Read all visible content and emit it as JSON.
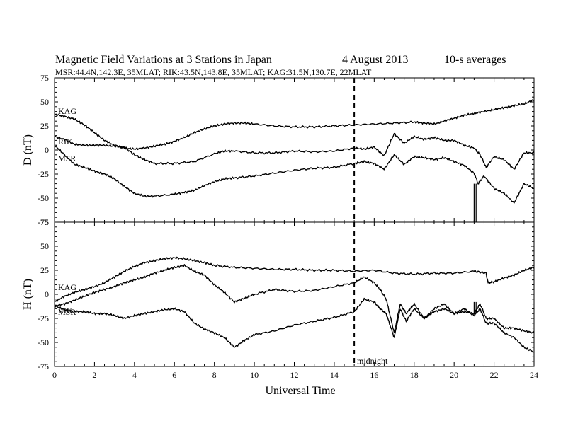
{
  "header": {
    "title": "Magnetic Field Variations at 3 Stations in Japan",
    "date": "4   August  2013",
    "averaging": "10-s averages",
    "stations": "MSR:44.4N,142.3E, 35MLAT;  RIK:43.5N,143.8E, 35MLAT;  KAG:31.5N,130.7E, 22MLAT"
  },
  "chart_data": [
    {
      "type": "line",
      "panel": "top",
      "ylabel": "D (nT)",
      "xlabel": "",
      "xlim": [
        0,
        24
      ],
      "ylim": [
        -75,
        75
      ],
      "yticks": [
        75,
        50,
        25,
        0,
        -25,
        -50,
        -75
      ],
      "xticks": [
        0,
        2,
        4,
        6,
        8,
        10,
        12,
        14,
        16,
        18,
        20,
        22,
        24
      ],
      "annotations": [
        "KAG",
        "RIK",
        "MSR"
      ],
      "marker_line": {
        "x": 15,
        "style": "dashed"
      },
      "series": [
        {
          "name": "KAG",
          "x": [
            0,
            0.5,
            1,
            1.5,
            2,
            2.5,
            3,
            3.5,
            4,
            4.5,
            5,
            5.5,
            6,
            6.5,
            7,
            7.5,
            8,
            8.5,
            9,
            9.5,
            10,
            11,
            12,
            13,
            14,
            15,
            16,
            17,
            18,
            18.5,
            19,
            19.5,
            20,
            20.5,
            21,
            21.5,
            22,
            22.5,
            23,
            23.5,
            24
          ],
          "y": [
            37,
            35,
            32,
            26,
            18,
            10,
            5,
            2,
            1,
            2,
            4,
            6,
            9,
            13,
            18,
            22,
            25,
            27,
            28,
            28,
            27,
            25,
            24,
            24,
            25,
            26,
            27,
            28,
            29,
            28,
            27,
            30,
            33,
            36,
            38,
            40,
            42,
            44,
            46,
            48,
            52
          ]
        },
        {
          "name": "RIK",
          "x": [
            0,
            0.5,
            1,
            1.5,
            2,
            2.5,
            3,
            3.5,
            4,
            4.5,
            5,
            6,
            7,
            8,
            8.5,
            9,
            10,
            11,
            12,
            13,
            14,
            15,
            15.5,
            16,
            16.5,
            17,
            17.5,
            18,
            18.5,
            19,
            19.5,
            20,
            20.5,
            21,
            21.3,
            21.6,
            22,
            22.5,
            23,
            23.5,
            24
          ],
          "y": [
            14,
            11,
            6,
            5,
            5,
            5,
            4,
            3,
            -5,
            -10,
            -14,
            -14,
            -12,
            -4,
            -1,
            -1,
            -3,
            -3,
            -1,
            -2,
            -1,
            2,
            1,
            3,
            -6,
            17,
            7,
            14,
            11,
            13,
            10,
            10,
            5,
            2,
            -5,
            -18,
            -7,
            -10,
            -20,
            -3,
            -3
          ]
        },
        {
          "name": "MSR",
          "x": [
            0,
            0.5,
            1,
            1.5,
            2,
            2.5,
            3,
            3.5,
            4,
            4.5,
            5,
            6,
            6.5,
            7,
            7.5,
            8,
            8.5,
            9,
            10,
            11,
            12,
            13,
            14,
            15,
            15.5,
            16,
            16.5,
            17,
            17.5,
            18,
            18.5,
            19,
            19.5,
            20,
            20.5,
            21,
            21.2,
            21.5,
            22,
            22.5,
            23,
            23.5,
            24
          ],
          "y": [
            5,
            -5,
            -15,
            -18,
            -22,
            -25,
            -30,
            -38,
            -45,
            -48,
            -48,
            -46,
            -44,
            -42,
            -37,
            -33,
            -30,
            -29,
            -27,
            -24,
            -21,
            -19,
            -18,
            -14,
            -12,
            -14,
            -20,
            -5,
            -15,
            -7,
            -8,
            -10,
            -8,
            -12,
            -16,
            -24,
            -35,
            -27,
            -40,
            -45,
            -55,
            -35,
            -40
          ]
        }
      ],
      "spikes": [
        {
          "station": "MSR",
          "x": 21.0,
          "y_min": -75,
          "y_max": -35
        },
        {
          "station": "MSR",
          "x": 21.1,
          "y_min": -75,
          "y_max": -35
        }
      ]
    },
    {
      "type": "line",
      "panel": "bottom",
      "ylabel": "H (nT)",
      "xlabel": "Universal Time",
      "xlim": [
        0,
        24
      ],
      "ylim": [
        -75,
        75
      ],
      "yticks": [
        75,
        50,
        25,
        0,
        -25,
        -50,
        -75
      ],
      "xticks": [
        0,
        2,
        4,
        6,
        8,
        10,
        12,
        14,
        16,
        18,
        20,
        22,
        24
      ],
      "annotations": [
        "KAG",
        "RIK",
        "MSR",
        "midnight"
      ],
      "marker_line": {
        "x": 15,
        "style": "dashed",
        "label": "midnight"
      },
      "series": [
        {
          "name": "KAG",
          "x": [
            0,
            0.5,
            1,
            1.5,
            2,
            2.5,
            3,
            3.5,
            4,
            4.5,
            5,
            5.5,
            6,
            6.5,
            7,
            7.5,
            8,
            9,
            10,
            11,
            12,
            13,
            14,
            15,
            16,
            17,
            18,
            19,
            20,
            21,
            21.6,
            21.7,
            22,
            22.5,
            23,
            23.5,
            24
          ],
          "y": [
            -8,
            -2,
            2,
            5,
            8,
            12,
            18,
            24,
            29,
            33,
            35,
            37,
            38,
            37,
            35,
            33,
            30,
            28,
            27,
            26,
            26,
            25,
            25,
            24,
            25,
            22,
            21,
            22,
            22,
            24,
            22,
            12,
            13,
            17,
            20,
            25,
            28
          ]
        },
        {
          "name": "RIK",
          "x": [
            0,
            0.5,
            1,
            1.5,
            2,
            2.5,
            3,
            3.5,
            4,
            4.5,
            5,
            5.5,
            6,
            6.5,
            7,
            7.5,
            8,
            8.5,
            9,
            9.5,
            10,
            11,
            12,
            13,
            14,
            15,
            15.5,
            16,
            16.3,
            16.6,
            17,
            17.3,
            17.6,
            18,
            18.5,
            19,
            19.5,
            20,
            20.5,
            21,
            21.3,
            21.6,
            22,
            22.5,
            23,
            23.5,
            24
          ],
          "y": [
            -12,
            -10,
            -6,
            -2,
            2,
            5,
            8,
            12,
            15,
            18,
            22,
            25,
            28,
            30,
            24,
            20,
            10,
            2,
            -8,
            -4,
            0,
            5,
            3,
            4,
            8,
            12,
            18,
            12,
            5,
            -5,
            -40,
            -10,
            -20,
            -10,
            -25,
            -15,
            -10,
            -20,
            -18,
            -20,
            -10,
            -25,
            -25,
            -35,
            -35,
            -38,
            -40
          ]
        },
        {
          "name": "MSR",
          "x": [
            0,
            0.5,
            1,
            1.5,
            2,
            2.5,
            3,
            3.5,
            4,
            4.5,
            5,
            5.5,
            6,
            6.5,
            7,
            7.5,
            8,
            8.5,
            9,
            9.5,
            10,
            11,
            12,
            13,
            14,
            15,
            15.5,
            16,
            16.3,
            16.6,
            17,
            17.3,
            17.6,
            18,
            18.5,
            19,
            19.5,
            20,
            20.5,
            21,
            21.3,
            21.6,
            22,
            22.5,
            23,
            23.5,
            24
          ],
          "y": [
            -12,
            -16,
            -18,
            -18,
            -20,
            -20,
            -22,
            -25,
            -22,
            -20,
            -18,
            -16,
            -15,
            -18,
            -30,
            -36,
            -40,
            -45,
            -55,
            -48,
            -42,
            -38,
            -32,
            -28,
            -24,
            -18,
            -5,
            -8,
            -15,
            -20,
            -45,
            -15,
            -28,
            -15,
            -25,
            -18,
            -15,
            -20,
            -15,
            -22,
            -15,
            -30,
            -30,
            -40,
            -45,
            -55,
            -60
          ]
        }
      ],
      "spikes": [
        {
          "station": "MSR",
          "x": 21.0,
          "y_min": -20,
          "y_max": -8
        },
        {
          "station": "MSR",
          "x": 21.1,
          "y_min": -20,
          "y_max": -8
        }
      ]
    }
  ]
}
